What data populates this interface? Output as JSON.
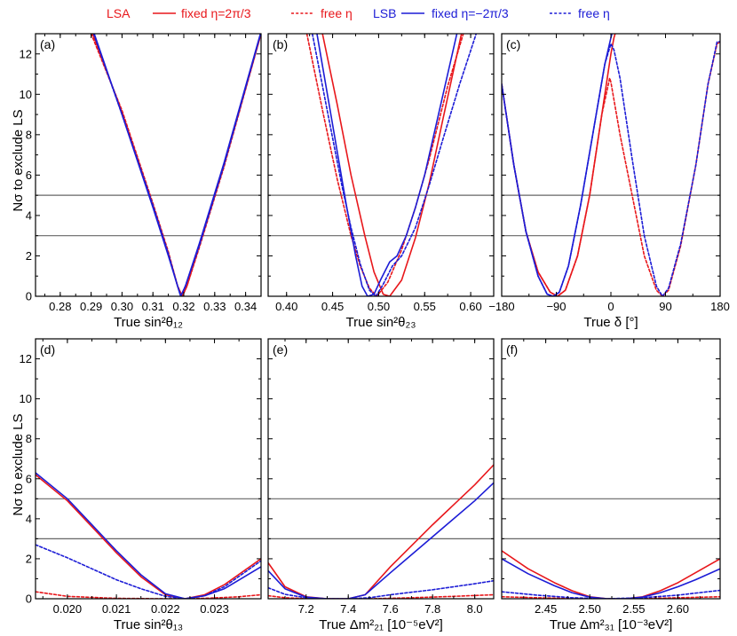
{
  "legend": {
    "groups": [
      {
        "name": "LSA",
        "color": "#e8171b",
        "entries": [
          {
            "label": "fixed η=2π/3",
            "dash": "solid"
          },
          {
            "label": "free η",
            "dash": "dotted"
          }
        ]
      },
      {
        "name": "LSB",
        "color": "#1c1cd6",
        "entries": [
          {
            "label": "fixed η=−2π/3",
            "dash": "solid"
          },
          {
            "label": "free η",
            "dash": "dotted"
          }
        ]
      }
    ]
  },
  "shared": {
    "ylabel": "Nσ to exclude LS",
    "ylim": [
      0,
      13
    ],
    "yticks": [
      0,
      2,
      4,
      6,
      8,
      10,
      12
    ],
    "hlines": [
      3,
      5
    ],
    "colors": {
      "LSA": "#e8171b",
      "LSB": "#1c1cd6",
      "hline": "#666666"
    }
  },
  "chart_data": [
    {
      "id": "a",
      "panel_label": "(a)",
      "type": "line",
      "xlabel": "True sin²θ₁₂",
      "xlim": [
        0.272,
        0.345
      ],
      "xticks": [
        0.28,
        0.29,
        0.3,
        0.31,
        0.32,
        0.33,
        0.34
      ],
      "xticklabels": [
        "0.28",
        "0.29",
        "0.30",
        "0.31",
        "0.32",
        "0.33",
        "0.34"
      ],
      "series": [
        {
          "name": "LSA fixed",
          "group": "LSA",
          "dash": "solid",
          "x": [
            0.2905,
            0.3,
            0.31,
            0.315,
            0.318,
            0.3195,
            0.321,
            0.325,
            0.333,
            0.345
          ],
          "y": [
            13,
            9.1,
            4.5,
            2.1,
            0.5,
            0,
            0.5,
            2.5,
            6.5,
            13
          ]
        },
        {
          "name": "LSA free",
          "group": "LSA",
          "dash": "dotted",
          "x": [
            0.29,
            0.3,
            0.31,
            0.315,
            0.318,
            0.3195,
            0.321,
            0.325,
            0.333,
            0.345
          ],
          "y": [
            13,
            9.2,
            4.6,
            2.2,
            0.5,
            0,
            0.5,
            2.4,
            6.4,
            13
          ]
        },
        {
          "name": "LSB fixed",
          "group": "LSB",
          "dash": "solid",
          "x": [
            0.291,
            0.3,
            0.31,
            0.315,
            0.318,
            0.319,
            0.3205,
            0.325,
            0.333,
            0.3448
          ],
          "y": [
            13,
            9.0,
            4.4,
            2.0,
            0.5,
            0,
            0.5,
            2.6,
            6.6,
            13
          ]
        },
        {
          "name": "LSB free",
          "group": "LSB",
          "dash": "dotted",
          "x": [
            0.2908,
            0.3,
            0.31,
            0.315,
            0.318,
            0.319,
            0.3205,
            0.325,
            0.333,
            0.3449
          ],
          "y": [
            13,
            9.0,
            4.5,
            2.1,
            0.5,
            0,
            0.5,
            2.5,
            6.5,
            13
          ]
        }
      ]
    },
    {
      "id": "b",
      "panel_label": "(b)",
      "type": "line",
      "xlabel": "True sin²θ₂₃",
      "xlim": [
        0.38,
        0.625
      ],
      "xticks": [
        0.4,
        0.45,
        0.5,
        0.55,
        0.6
      ],
      "xticklabels": [
        "0.40",
        "0.45",
        "0.50",
        "0.55",
        "0.60"
      ],
      "series": [
        {
          "name": "LSA fixed",
          "group": "LSA",
          "dash": "solid",
          "x": [
            0.439,
            0.455,
            0.47,
            0.485,
            0.495,
            0.505,
            0.512,
            0.525,
            0.54,
            0.555,
            0.57,
            0.59
          ],
          "y": [
            13,
            9.5,
            6.0,
            3.0,
            1.2,
            0.1,
            0,
            0.8,
            2.9,
            5.6,
            8.8,
            13
          ]
        },
        {
          "name": "LSA free",
          "group": "LSA",
          "dash": "dotted",
          "x": [
            0.422,
            0.44,
            0.455,
            0.47,
            0.48,
            0.49,
            0.498,
            0.51,
            0.525,
            0.54,
            0.555,
            0.575,
            0.592
          ],
          "y": [
            13,
            9.0,
            5.8,
            3.0,
            1.5,
            0.4,
            0,
            0.7,
            2.3,
            4.4,
            6.8,
            10.4,
            13
          ]
        },
        {
          "name": "LSB fixed",
          "group": "LSB",
          "dash": "solid",
          "x": [
            0.433,
            0.45,
            0.465,
            0.475,
            0.482,
            0.488,
            0.495,
            0.502,
            0.512,
            0.52,
            0.53,
            0.54,
            0.55,
            0.565,
            0.585
          ],
          "y": [
            13,
            8.5,
            4.5,
            2.0,
            0.5,
            0,
            0.1,
            0.8,
            1.7,
            2.0,
            3.0,
            4.4,
            6.0,
            9.0,
            13
          ]
        },
        {
          "name": "LSB free",
          "group": "LSB",
          "dash": "dotted",
          "x": [
            0.428,
            0.445,
            0.46,
            0.47,
            0.48,
            0.49,
            0.497,
            0.505,
            0.515,
            0.525,
            0.54,
            0.555,
            0.57,
            0.588,
            0.606
          ],
          "y": [
            13,
            9.0,
            5.5,
            3.4,
            1.6,
            0.3,
            0,
            0.6,
            1.5,
            2.0,
            3.4,
            5.5,
            7.8,
            10.5,
            13
          ]
        }
      ]
    },
    {
      "id": "c",
      "panel_label": "(c)",
      "type": "line",
      "xlabel": "True δ [°]",
      "xlim": [
        -180,
        180
      ],
      "xticks": [
        -180,
        -90,
        0,
        90,
        180
      ],
      "xticklabels": [
        "−180",
        "−90",
        "0",
        "90",
        "180"
      ],
      "series": [
        {
          "name": "LSA fixed",
          "group": "LSA",
          "dash": "solid",
          "x": [
            -180,
            -160,
            -140,
            -120,
            -100,
            -88,
            -75,
            -55,
            -35,
            -15,
            0,
            5,
            15,
            20
          ],
          "y": [
            10.5,
            6.5,
            3.2,
            1.2,
            0.2,
            0,
            0.3,
            2.0,
            5.0,
            9.0,
            12.0,
            12.8,
            13.8,
            14.0
          ]
        },
        {
          "name": "LSA free",
          "group": "LSA",
          "dash": "dotted",
          "x": [
            -180,
            -160,
            -140,
            -120,
            -100,
            -88,
            -75,
            -55,
            -35,
            -15,
            -2,
            0,
            15,
            35,
            55,
            75,
            85,
            95,
            115,
            140,
            160,
            175,
            180
          ],
          "y": [
            10.5,
            6.5,
            3.2,
            1.2,
            0.2,
            0,
            0.3,
            2.0,
            5.0,
            9.0,
            10.8,
            10.6,
            8.0,
            5.0,
            2.0,
            0.3,
            0,
            0.3,
            2.5,
            6.5,
            10.5,
            12.5,
            12.6
          ]
        },
        {
          "name": "LSB fixed",
          "group": "LSB",
          "dash": "solid",
          "x": [
            -180,
            -160,
            -140,
            -120,
            -105,
            -95,
            -85,
            -70,
            -50,
            -30,
            -10,
            0,
            10
          ],
          "y": [
            10.5,
            6.5,
            3.2,
            1.0,
            0.1,
            0,
            0.2,
            1.5,
            4.5,
            8.0,
            11.5,
            12.8,
            14.0
          ]
        },
        {
          "name": "LSB free",
          "group": "LSB",
          "dash": "dotted",
          "x": [
            -180,
            -160,
            -140,
            -120,
            -105,
            -95,
            -85,
            -70,
            -50,
            -30,
            -10,
            0,
            5,
            15,
            35,
            55,
            75,
            85,
            95,
            115,
            140,
            160,
            175,
            180
          ],
          "y": [
            10.5,
            6.5,
            3.2,
            1.0,
            0.1,
            0,
            0.2,
            1.5,
            4.5,
            8.0,
            11.5,
            12.5,
            12.2,
            10.8,
            6.8,
            3.0,
            0.5,
            0,
            0.4,
            2.6,
            6.5,
            10.5,
            12.6,
            12.6
          ]
        }
      ]
    },
    {
      "id": "d",
      "panel_label": "(d)",
      "type": "line",
      "xlabel": "True sin²θ₁₃",
      "xlim": [
        0.01935,
        0.02395
      ],
      "xticks": [
        0.02,
        0.021,
        0.022,
        0.023
      ],
      "xticklabels": [
        "0.020",
        "0.021",
        "0.022",
        "0.023"
      ],
      "series": [
        {
          "name": "LSA fixed",
          "group": "LSA",
          "dash": "solid",
          "x": [
            0.01935,
            0.02,
            0.0205,
            0.021,
            0.0215,
            0.022,
            0.0224,
            0.0228,
            0.0232,
            0.02395
          ],
          "y": [
            6.2,
            4.9,
            3.6,
            2.3,
            1.1,
            0.2,
            0,
            0.2,
            0.7,
            2.0
          ]
        },
        {
          "name": "LSA free",
          "group": "LSA",
          "dash": "dotted",
          "x": [
            0.01935,
            0.02,
            0.021,
            0.022,
            0.0228,
            0.0235,
            0.02395
          ],
          "y": [
            0.35,
            0.12,
            0.02,
            0,
            0.02,
            0.1,
            0.2
          ]
        },
        {
          "name": "LSB fixed",
          "group": "LSB",
          "dash": "solid",
          "x": [
            0.01935,
            0.02,
            0.0205,
            0.021,
            0.0215,
            0.022,
            0.0224,
            0.0228,
            0.0232,
            0.02395
          ],
          "y": [
            6.3,
            5.0,
            3.7,
            2.4,
            1.2,
            0.25,
            0,
            0.15,
            0.5,
            1.6
          ]
        },
        {
          "name": "LSB free",
          "group": "LSB",
          "dash": "dotted",
          "x": [
            0.01935,
            0.02,
            0.0205,
            0.021,
            0.0215,
            0.022,
            0.0224,
            0.0228,
            0.0232,
            0.02395
          ],
          "y": [
            2.7,
            2.05,
            1.5,
            0.95,
            0.5,
            0.12,
            0,
            0.15,
            0.6,
            1.9
          ]
        }
      ]
    },
    {
      "id": "e",
      "panel_label": "(e)",
      "type": "line",
      "xlabel": "True Δm²₂₁ [10⁻⁵eV²]",
      "xlim": [
        7.02,
        8.09
      ],
      "xticks": [
        7.2,
        7.4,
        7.6,
        7.8,
        8.0
      ],
      "xticklabels": [
        "7.2",
        "7.4",
        "7.6",
        "7.8",
        "8.0"
      ],
      "series": [
        {
          "name": "LSA fixed",
          "group": "LSA",
          "dash": "solid",
          "x": [
            7.02,
            7.1,
            7.2,
            7.3,
            7.4,
            7.48,
            7.6,
            7.8,
            8.0,
            8.09
          ],
          "y": [
            1.8,
            0.6,
            0.1,
            0,
            0,
            0.2,
            1.6,
            3.7,
            5.7,
            6.7
          ]
        },
        {
          "name": "LSA free",
          "group": "LSA",
          "dash": "dotted",
          "x": [
            7.02,
            7.1,
            7.2,
            7.35,
            7.5,
            7.7,
            7.9,
            8.09
          ],
          "y": [
            0.15,
            0.05,
            0.01,
            0,
            0,
            0.05,
            0.12,
            0.2
          ]
        },
        {
          "name": "LSB fixed",
          "group": "LSB",
          "dash": "solid",
          "x": [
            7.02,
            7.1,
            7.2,
            7.3,
            7.4,
            7.48,
            7.6,
            7.8,
            8.0,
            8.09
          ],
          "y": [
            1.4,
            0.5,
            0.08,
            0,
            0,
            0.2,
            1.3,
            3.1,
            4.9,
            5.8
          ]
        },
        {
          "name": "LSB free",
          "group": "LSB",
          "dash": "dotted",
          "x": [
            7.02,
            7.1,
            7.2,
            7.3,
            7.4,
            7.5,
            7.6,
            7.8,
            8.0,
            8.09
          ],
          "y": [
            0.55,
            0.22,
            0.05,
            0,
            0,
            0.05,
            0.2,
            0.45,
            0.75,
            0.9
          ]
        }
      ]
    },
    {
      "id": "f",
      "panel_label": "(f)",
      "type": "line",
      "xlabel": "True Δm²₃₁ [10⁻³eV²]",
      "xlim": [
        2.4,
        2.648
      ],
      "xticks": [
        2.45,
        2.5,
        2.55,
        2.6
      ],
      "xticklabels": [
        "2.45",
        "2.50",
        "2.55",
        "2.60"
      ],
      "series": [
        {
          "name": "LSA fixed",
          "group": "LSA",
          "dash": "solid",
          "x": [
            2.4,
            2.43,
            2.46,
            2.48,
            2.5,
            2.52,
            2.54,
            2.56,
            2.58,
            2.6,
            2.62,
            2.648
          ],
          "y": [
            2.4,
            1.5,
            0.8,
            0.4,
            0.1,
            0,
            0,
            0.1,
            0.4,
            0.8,
            1.3,
            2.0
          ]
        },
        {
          "name": "LSA free",
          "group": "LSA",
          "dash": "dotted",
          "x": [
            2.4,
            2.44,
            2.48,
            2.52,
            2.56,
            2.6,
            2.648
          ],
          "y": [
            0.1,
            0.05,
            0.01,
            0,
            0.01,
            0.05,
            0.1
          ]
        },
        {
          "name": "LSB fixed",
          "group": "LSB",
          "dash": "solid",
          "x": [
            2.4,
            2.43,
            2.46,
            2.48,
            2.5,
            2.52,
            2.54,
            2.56,
            2.58,
            2.6,
            2.62,
            2.648
          ],
          "y": [
            2.0,
            1.25,
            0.65,
            0.3,
            0.08,
            0,
            0,
            0.08,
            0.3,
            0.6,
            0.95,
            1.5
          ]
        },
        {
          "name": "LSB free",
          "group": "LSB",
          "dash": "dotted",
          "x": [
            2.4,
            2.44,
            2.48,
            2.52,
            2.56,
            2.6,
            2.648
          ],
          "y": [
            0.35,
            0.18,
            0.05,
            0,
            0.05,
            0.18,
            0.42
          ]
        }
      ]
    }
  ]
}
